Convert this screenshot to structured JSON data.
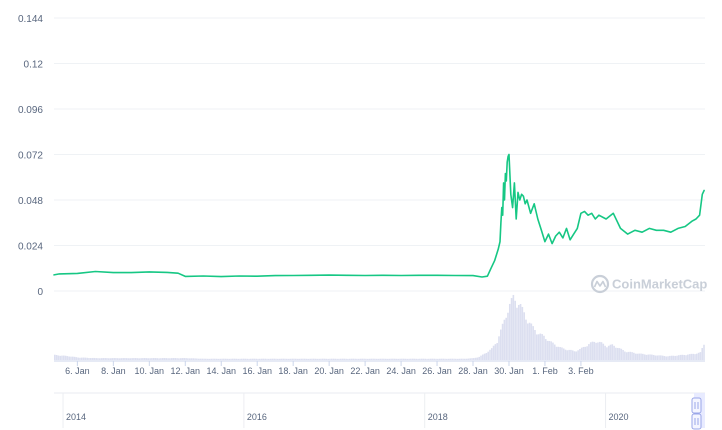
{
  "colors": {
    "price_line": "#16c784",
    "volume": "#dcdff0",
    "grid": "#eff2f5",
    "axis_text": "#58667e",
    "navigator_handle": "#9aa6e8",
    "watermark": "#c9cfd8"
  },
  "watermark": {
    "text": "CoinMarketCap",
    "icon": "coinmarketcap-logo-icon"
  },
  "chart_data": {
    "type": "line",
    "title": "",
    "xlabel": "",
    "ylabel": "",
    "ylim": [
      0,
      0.144
    ],
    "grid": true,
    "y_ticks": [
      "0",
      "0.024",
      "0.048",
      "0.072",
      "0.096",
      "0.12",
      "0.144"
    ],
    "x_tick_labels": [
      "6. Jan",
      "8. Jan",
      "10. Jan",
      "12. Jan",
      "14. Jan",
      "16. Jan",
      "18. Jan",
      "20. Jan",
      "22. Jan",
      "24. Jan",
      "26. Jan",
      "28. Jan",
      "30. Jan",
      "1. Feb",
      "3. Feb"
    ],
    "x_range_days": [
      4.7,
      40.9
    ],
    "price_series": {
      "x_days": [
        4.7,
        5.0,
        6.0,
        7.0,
        8.0,
        9.0,
        10.0,
        11.0,
        11.6,
        12.0,
        13.0,
        14.0,
        15.0,
        16.0,
        17.0,
        18.0,
        19.0,
        20.0,
        21.0,
        22.0,
        23.0,
        24.0,
        25.0,
        26.0,
        27.0,
        28.0,
        28.5,
        28.8,
        29.0,
        29.2,
        29.4,
        29.5,
        29.55,
        29.6,
        29.65,
        29.7,
        29.75,
        29.8,
        29.85,
        29.9,
        29.95,
        30.0,
        30.1,
        30.2,
        30.3,
        30.4,
        30.5,
        30.6,
        30.7,
        30.8,
        30.9,
        31.0,
        31.2,
        31.4,
        31.6,
        31.8,
        32.0,
        32.2,
        32.4,
        32.6,
        32.8,
        33.0,
        33.2,
        33.4,
        33.6,
        33.8,
        34.0,
        34.2,
        34.4,
        34.6,
        34.8,
        35.0,
        35.4,
        35.8,
        36.2,
        36.6,
        37.0,
        37.4,
        37.8,
        38.2,
        38.6,
        39.0,
        39.4,
        39.8,
        40.2,
        40.4,
        40.6,
        40.75,
        40.85
      ],
      "values": [
        0.0085,
        0.009,
        0.0093,
        0.0103,
        0.0097,
        0.0097,
        0.0101,
        0.0098,
        0.0094,
        0.0077,
        0.0079,
        0.0076,
        0.0079,
        0.0078,
        0.0081,
        0.0082,
        0.0083,
        0.0084,
        0.0083,
        0.0082,
        0.0083,
        0.0082,
        0.0083,
        0.0083,
        0.0082,
        0.0081,
        0.0074,
        0.0078,
        0.012,
        0.016,
        0.022,
        0.026,
        0.036,
        0.044,
        0.04,
        0.057,
        0.048,
        0.062,
        0.058,
        0.068,
        0.071,
        0.072,
        0.051,
        0.044,
        0.057,
        0.038,
        0.052,
        0.048,
        0.051,
        0.05,
        0.046,
        0.048,
        0.041,
        0.046,
        0.038,
        0.032,
        0.026,
        0.03,
        0.025,
        0.029,
        0.031,
        0.028,
        0.033,
        0.027,
        0.03,
        0.033,
        0.041,
        0.042,
        0.04,
        0.041,
        0.038,
        0.04,
        0.038,
        0.041,
        0.033,
        0.03,
        0.032,
        0.031,
        0.033,
        0.032,
        0.032,
        0.031,
        0.033,
        0.034,
        0.037,
        0.038,
        0.04,
        0.051,
        0.053
      ]
    },
    "volume_series": {
      "x_days": [
        4.7,
        5.5,
        6.0,
        7.0,
        8.0,
        9.0,
        10.0,
        11.0,
        12.0,
        13.0,
        14.0,
        15.0,
        16.0,
        17.0,
        18.0,
        19.0,
        20.0,
        21.0,
        22.0,
        23.0,
        24.0,
        25.0,
        26.0,
        27.0,
        27.5,
        28.0,
        28.3,
        28.6,
        29.0,
        29.3,
        29.6,
        29.8,
        30.0,
        30.2,
        30.4,
        30.6,
        30.8,
        31.0,
        31.3,
        31.6,
        31.9,
        32.2,
        32.5,
        32.8,
        33.0,
        33.3,
        33.6,
        33.9,
        34.2,
        34.5,
        34.8,
        35.1,
        35.4,
        35.7,
        36.0,
        36.4,
        36.8,
        37.2,
        37.6,
        38.0,
        38.4,
        38.8,
        39.2,
        39.6,
        40.0,
        40.3,
        40.6,
        40.85
      ],
      "values": [
        0.08,
        0.06,
        0.04,
        0.03,
        0.03,
        0.03,
        0.03,
        0.03,
        0.03,
        0.02,
        0.02,
        0.02,
        0.02,
        0.02,
        0.02,
        0.02,
        0.02,
        0.02,
        0.02,
        0.02,
        0.02,
        0.02,
        0.02,
        0.02,
        0.02,
        0.03,
        0.05,
        0.1,
        0.18,
        0.3,
        0.55,
        0.72,
        0.88,
        1.0,
        0.93,
        0.86,
        0.75,
        0.62,
        0.52,
        0.42,
        0.38,
        0.3,
        0.25,
        0.2,
        0.18,
        0.16,
        0.14,
        0.17,
        0.22,
        0.27,
        0.3,
        0.27,
        0.22,
        0.24,
        0.2,
        0.14,
        0.12,
        0.1,
        0.09,
        0.08,
        0.07,
        0.06,
        0.07,
        0.08,
        0.09,
        0.1,
        0.12,
        0.28
      ]
    },
    "navigator": {
      "x_tick_labels": [
        "2014",
        "2016",
        "2018",
        "2020"
      ],
      "x_tick_years": [
        2014,
        2016,
        2018,
        2020
      ],
      "x_range_years": [
        2013.9,
        2021.1
      ],
      "range_selected": "end"
    }
  }
}
